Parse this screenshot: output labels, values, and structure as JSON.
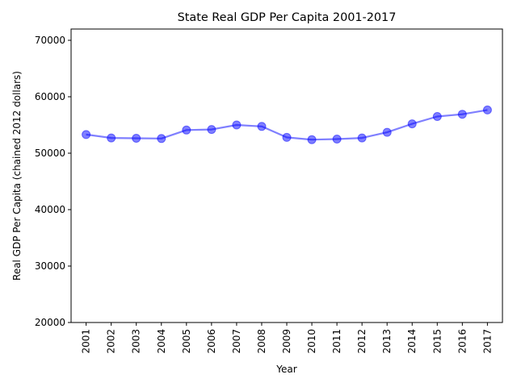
{
  "chart_data": {
    "type": "line",
    "title": "State Real GDP Per Capita 2001-2017",
    "xlabel": "Year",
    "ylabel": "Real GDP Per Capita (chained 2012 dollars)",
    "categories": [
      "2001",
      "2002",
      "2003",
      "2004",
      "2005",
      "2006",
      "2007",
      "2008",
      "2009",
      "2010",
      "2011",
      "2012",
      "2013",
      "2014",
      "2015",
      "2016",
      "2017"
    ],
    "series": [
      {
        "values": [
          53300,
          52700,
          52650,
          52600,
          54100,
          54200,
          55000,
          54750,
          52800,
          52400,
          52500,
          52700,
          53700,
          55200,
          56500,
          56900,
          57650
        ]
      }
    ],
    "ylim": [
      20000,
      72000
    ],
    "yticks": [
      20000,
      30000,
      40000,
      50000,
      60000,
      70000
    ],
    "grid": false,
    "legend": "none",
    "colors": {
      "series": "#0000ff"
    }
  }
}
